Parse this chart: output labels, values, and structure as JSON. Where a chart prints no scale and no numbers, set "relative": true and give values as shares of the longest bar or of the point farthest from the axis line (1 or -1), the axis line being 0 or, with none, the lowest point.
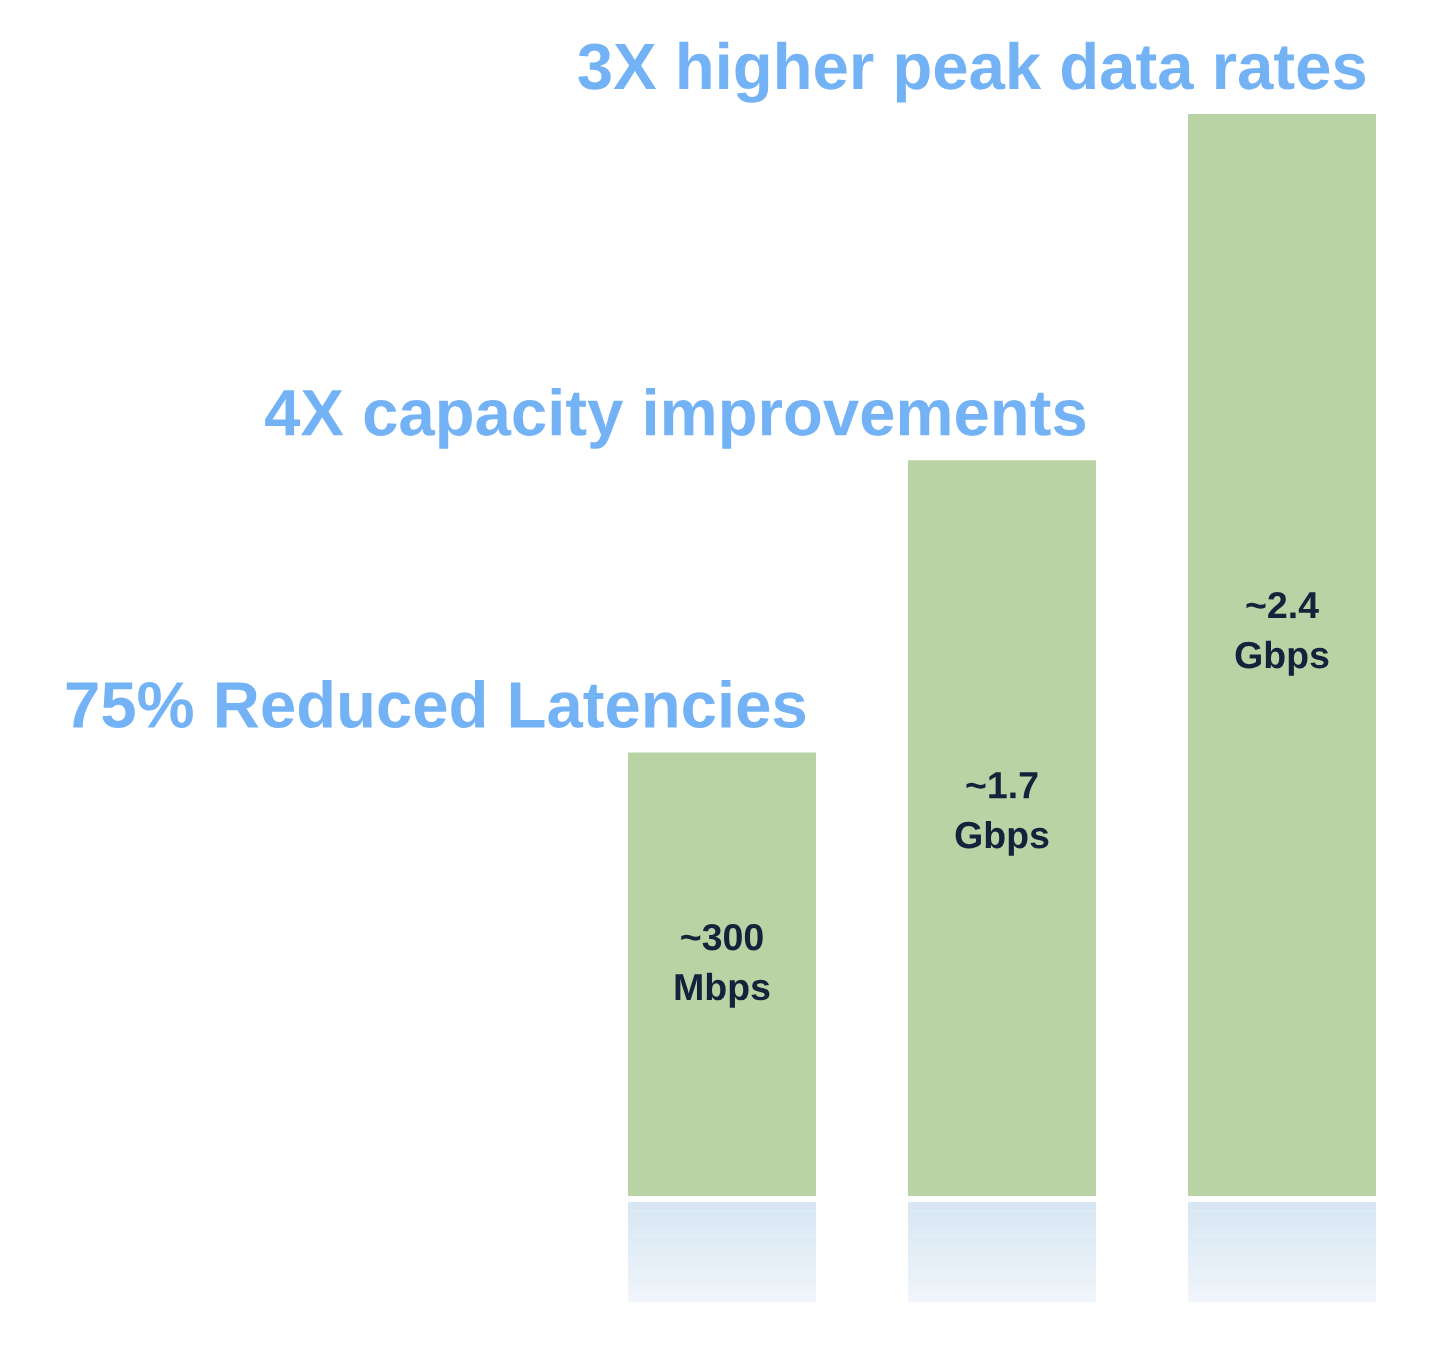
{
  "chart_data": {
    "type": "bar",
    "categories": [
      null,
      null,
      null
    ],
    "values": [
      0.41,
      0.68,
      1
    ],
    "relative": true,
    "color": "#b9d3a5",
    "annotations": [
      "75% Reduced Latencies",
      "~300\nMbps",
      "4X capacity improvements",
      "~1.7\nGbps",
      "3X higher peak data rates",
      "~2.4\nGbps"
    ]
  }
}
